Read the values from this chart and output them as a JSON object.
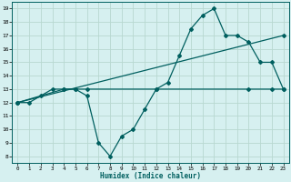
{
  "title": "",
  "xlabel": "Humidex (Indice chaleur)",
  "xlim": [
    -0.5,
    23.5
  ],
  "ylim": [
    7.5,
    19.5
  ],
  "yticks": [
    8,
    9,
    10,
    11,
    12,
    13,
    14,
    15,
    16,
    17,
    18,
    19
  ],
  "xticks": [
    0,
    1,
    2,
    3,
    4,
    5,
    6,
    7,
    8,
    9,
    10,
    11,
    12,
    13,
    14,
    15,
    16,
    17,
    18,
    19,
    20,
    21,
    22,
    23
  ],
  "bg_color": "#d6f0f0",
  "grid_color": "#b8d8d0",
  "line_color": "#005f5f",
  "line1_x": [
    0,
    1,
    2,
    3,
    4,
    5,
    6,
    7,
    8,
    9,
    10,
    11,
    12,
    13,
    14,
    15,
    16,
    17,
    18,
    19,
    20,
    21,
    22,
    23
  ],
  "line1_y": [
    12,
    12,
    12.5,
    13,
    13,
    13,
    12.5,
    9,
    8,
    9.5,
    10,
    11.5,
    13,
    13.5,
    15.5,
    17.5,
    18.5,
    19,
    17,
    17,
    16.5,
    15,
    15,
    13
  ],
  "line2_x": [
    0,
    4,
    5,
    6,
    12,
    20,
    22,
    23
  ],
  "line2_y": [
    12,
    13,
    13,
    13,
    13,
    13,
    13,
    13
  ],
  "line3_x": [
    0,
    23
  ],
  "line3_y": [
    12,
    17
  ]
}
